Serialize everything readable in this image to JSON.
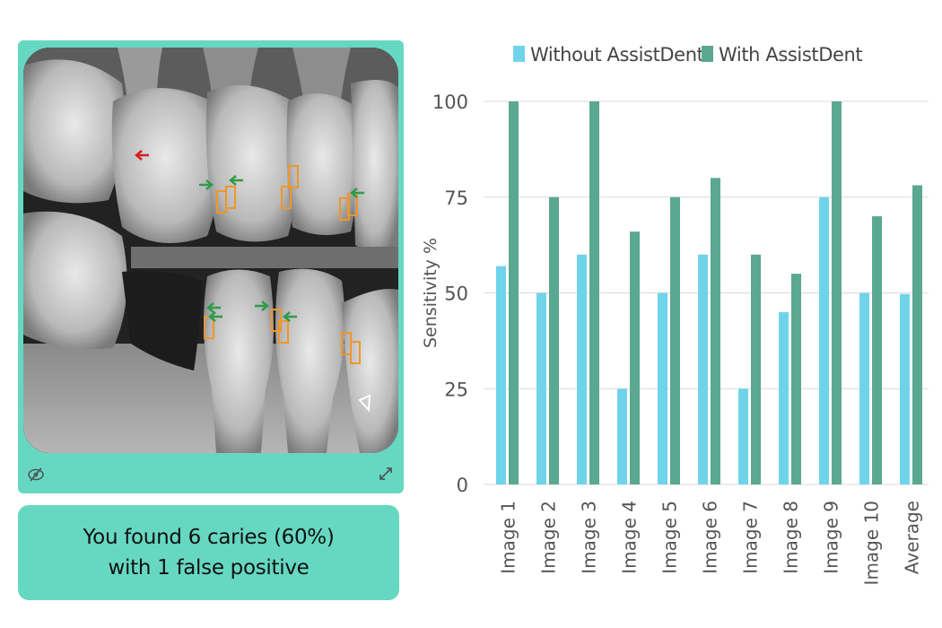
{
  "result": {
    "line1": "You found 6 caries (60%)",
    "line2": "with 1 false positive"
  },
  "image_panel": {
    "hide_icon": "eye-slash-icon",
    "expand_icon": "expand-arrows-icon",
    "marker_colors": {
      "detection": "#f0962a",
      "assist_arrow": "#2f9b4a",
      "missed_arrow": "#d11f1f"
    }
  },
  "chart_data": {
    "type": "bar",
    "categories": [
      "Image 1",
      "Image 2",
      "Image 3",
      "Image 4",
      "Image 5",
      "Image 6",
      "Image 7",
      "Image 8",
      "Image 9",
      "Image 10",
      "Average"
    ],
    "series": [
      {
        "name": "Without AssistDent",
        "color": "#6fd4ea",
        "values": [
          57,
          50,
          60,
          25,
          50,
          60,
          25,
          45,
          75,
          50,
          49.7
        ]
      },
      {
        "name": "With AssistDent",
        "color": "#5aa890",
        "values": [
          100,
          75,
          100,
          66,
          75,
          80,
          60,
          55,
          100,
          70,
          78.1
        ]
      }
    ],
    "ylabel": "Sensitivity %",
    "yticks": [
      0,
      25,
      50,
      75,
      100
    ],
    "ylim": [
      0,
      100
    ],
    "grid": true,
    "legend": "top"
  }
}
